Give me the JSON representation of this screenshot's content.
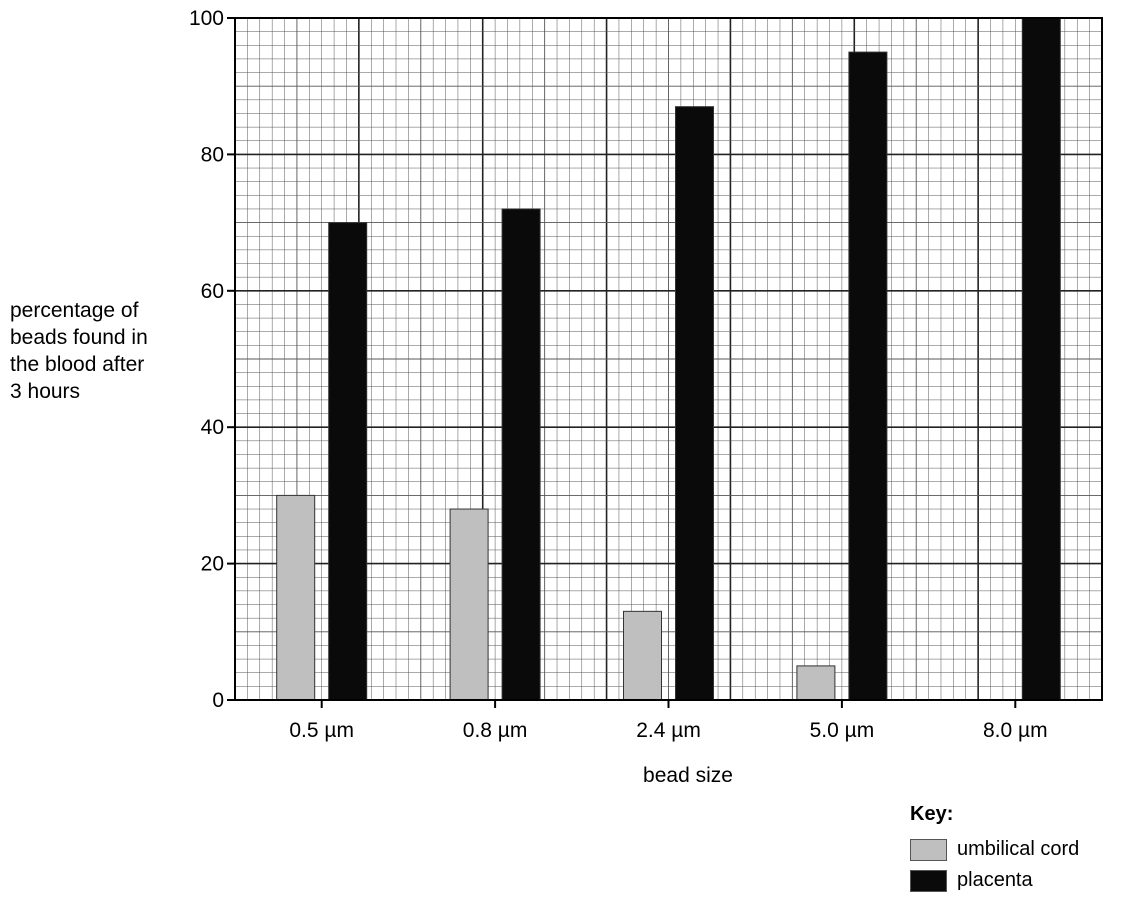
{
  "chart_data": {
    "type": "bar",
    "categories": [
      "0.5 µm",
      "0.8 µm",
      "2.4 µm",
      "5.0 µm",
      "8.0 µm"
    ],
    "series": [
      {
        "name": "umbilical cord",
        "values": [
          30,
          28,
          13,
          5,
          0
        ],
        "color": "#bfbfbf"
      },
      {
        "name": "placenta",
        "values": [
          70,
          72,
          87,
          95,
          100
        ],
        "color": "#0a0a0a"
      }
    ],
    "yticks": [
      "0",
      "20",
      "40",
      "60",
      "80",
      "100"
    ],
    "ylim": [
      0,
      100
    ],
    "xlabel": "bead size",
    "ylabel": "percentage of\nbeads found in\nthe blood after\n3 hours",
    "grid": true,
    "legend": {
      "title": "Key:",
      "position": "bottom-right"
    }
  }
}
